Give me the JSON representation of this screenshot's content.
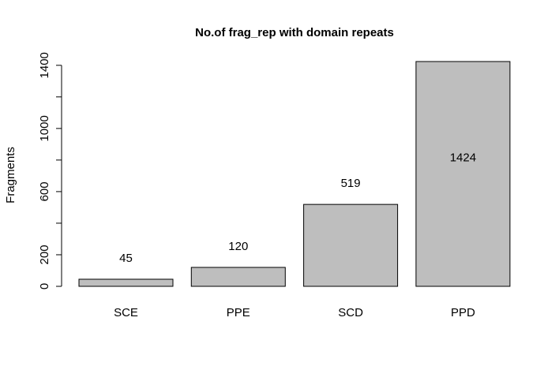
{
  "chart_data": {
    "type": "bar",
    "title": "No.of frag_rep with domain repeats",
    "xlabel": "",
    "ylabel": "Fragments",
    "categories": [
      "SCE",
      "PPE",
      "SCD",
      "PPD"
    ],
    "values": [
      45,
      120,
      519,
      1424
    ],
    "data_labels": [
      "45",
      "120",
      "519",
      "1424"
    ],
    "y_ticks": [
      0,
      200,
      400,
      600,
      800,
      1000,
      1200,
      1400
    ],
    "y_tick_labels": [
      "0",
      "200",
      "",
      "600",
      "",
      "1000",
      "",
      "1400"
    ],
    "ylim": [
      0,
      1424
    ],
    "grid": false,
    "bar_color": "#bebebe"
  }
}
